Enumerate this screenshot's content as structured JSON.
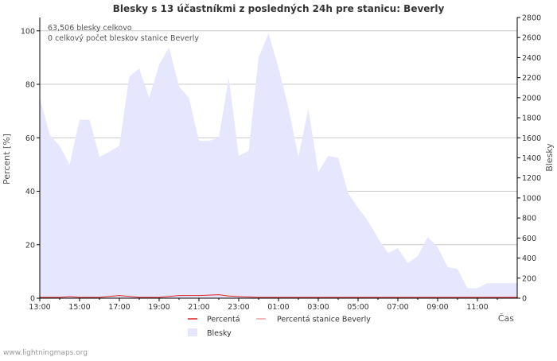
{
  "chart_data": {
    "type": "area",
    "title": "Blesky s 13 účastníkmi z posledných 24h pre stanicu: Beverly",
    "ylabel_left": "Percent   [%]",
    "ylabel_right": "Blesky",
    "xlabel": "Čas",
    "ylim_left": [
      0,
      105
    ],
    "ylim_right": [
      0,
      2800
    ],
    "yticks_left": [
      "0",
      "20",
      "40",
      "60",
      "80",
      "100"
    ],
    "yticks_right": [
      "0",
      "200",
      "400",
      "600",
      "800",
      "1000",
      "1200",
      "1400",
      "1600",
      "1800",
      "2000",
      "2200",
      "2400",
      "2600",
      "2800"
    ],
    "x_tick_labels": [
      "13:00",
      "15:00",
      "17:00",
      "19:00",
      "21:00",
      "23:00",
      "01:00",
      "03:00",
      "05:00",
      "07:00",
      "09:00",
      "11:00"
    ],
    "annotations": [
      "63,506 blesky celkovo",
      "0 celkový počet bleskov stanice Beverly"
    ],
    "legend": [
      {
        "label": "Percentá",
        "color": "#dd2222",
        "kind": "line"
      },
      {
        "label": "Percentá stanice Beverly",
        "color": "#f0a0a0",
        "kind": "line"
      },
      {
        "label": "Blesky",
        "color": "#e6e6ff",
        "kind": "area"
      }
    ],
    "series": [
      {
        "name": "Blesky",
        "axis": "right",
        "hours": [
          0,
          0.5,
          1,
          1.5,
          2,
          2.5,
          3,
          3.5,
          4,
          4.5,
          5,
          5.5,
          6,
          6.5,
          7,
          7.5,
          8,
          8.5,
          9,
          9.5,
          10,
          10.5,
          11,
          11.5,
          12,
          12.5,
          13,
          13.5,
          14,
          14.5,
          15,
          15.5,
          16,
          16.5,
          17,
          17.5,
          18,
          18.5,
          19,
          19.5,
          20,
          20.5,
          21,
          21.5,
          22,
          22.5,
          23,
          23.5,
          24
        ],
        "values": [
          2000,
          1630,
          1520,
          1330,
          1780,
          1780,
          1410,
          1460,
          1520,
          2210,
          2290,
          2000,
          2330,
          2500,
          2110,
          2000,
          1570,
          1570,
          1600,
          2200,
          1420,
          1470,
          2400,
          2640,
          2300,
          1900,
          1410,
          1890,
          1260,
          1420,
          1400,
          1050,
          900,
          770,
          600,
          450,
          500,
          350,
          420,
          610,
          510,
          310,
          290,
          100,
          100,
          150,
          150,
          150,
          150
        ]
      },
      {
        "name": "Percentá",
        "axis": "left",
        "hours": [
          0,
          1,
          1.5,
          2,
          3,
          4,
          5,
          6,
          7,
          8,
          9,
          9.5,
          10,
          11,
          12,
          13,
          14,
          15,
          16,
          17,
          18,
          19,
          20,
          21,
          22,
          23,
          24
        ],
        "values": [
          0.3,
          0.3,
          0.6,
          0.3,
          0.3,
          1.0,
          0.3,
          0.3,
          1.0,
          1.0,
          1.3,
          0.8,
          0.6,
          0.3,
          0.3,
          0.3,
          0.3,
          0.3,
          0.3,
          0.3,
          0.3,
          0.3,
          0.3,
          0.3,
          0.3,
          0.3,
          0.3
        ]
      },
      {
        "name": "Percentá stanice Beverly",
        "axis": "left",
        "hours": [
          0,
          24
        ],
        "values": [
          0,
          0
        ]
      }
    ]
  },
  "footer": {
    "source": "www.lightningmaps.org"
  },
  "colors": {
    "area_fill": "#e6e6ff",
    "percent_line": "#dd2222",
    "station_line": "#f0a0a0",
    "grid": "#c8c8c8",
    "axis": "#000000"
  }
}
